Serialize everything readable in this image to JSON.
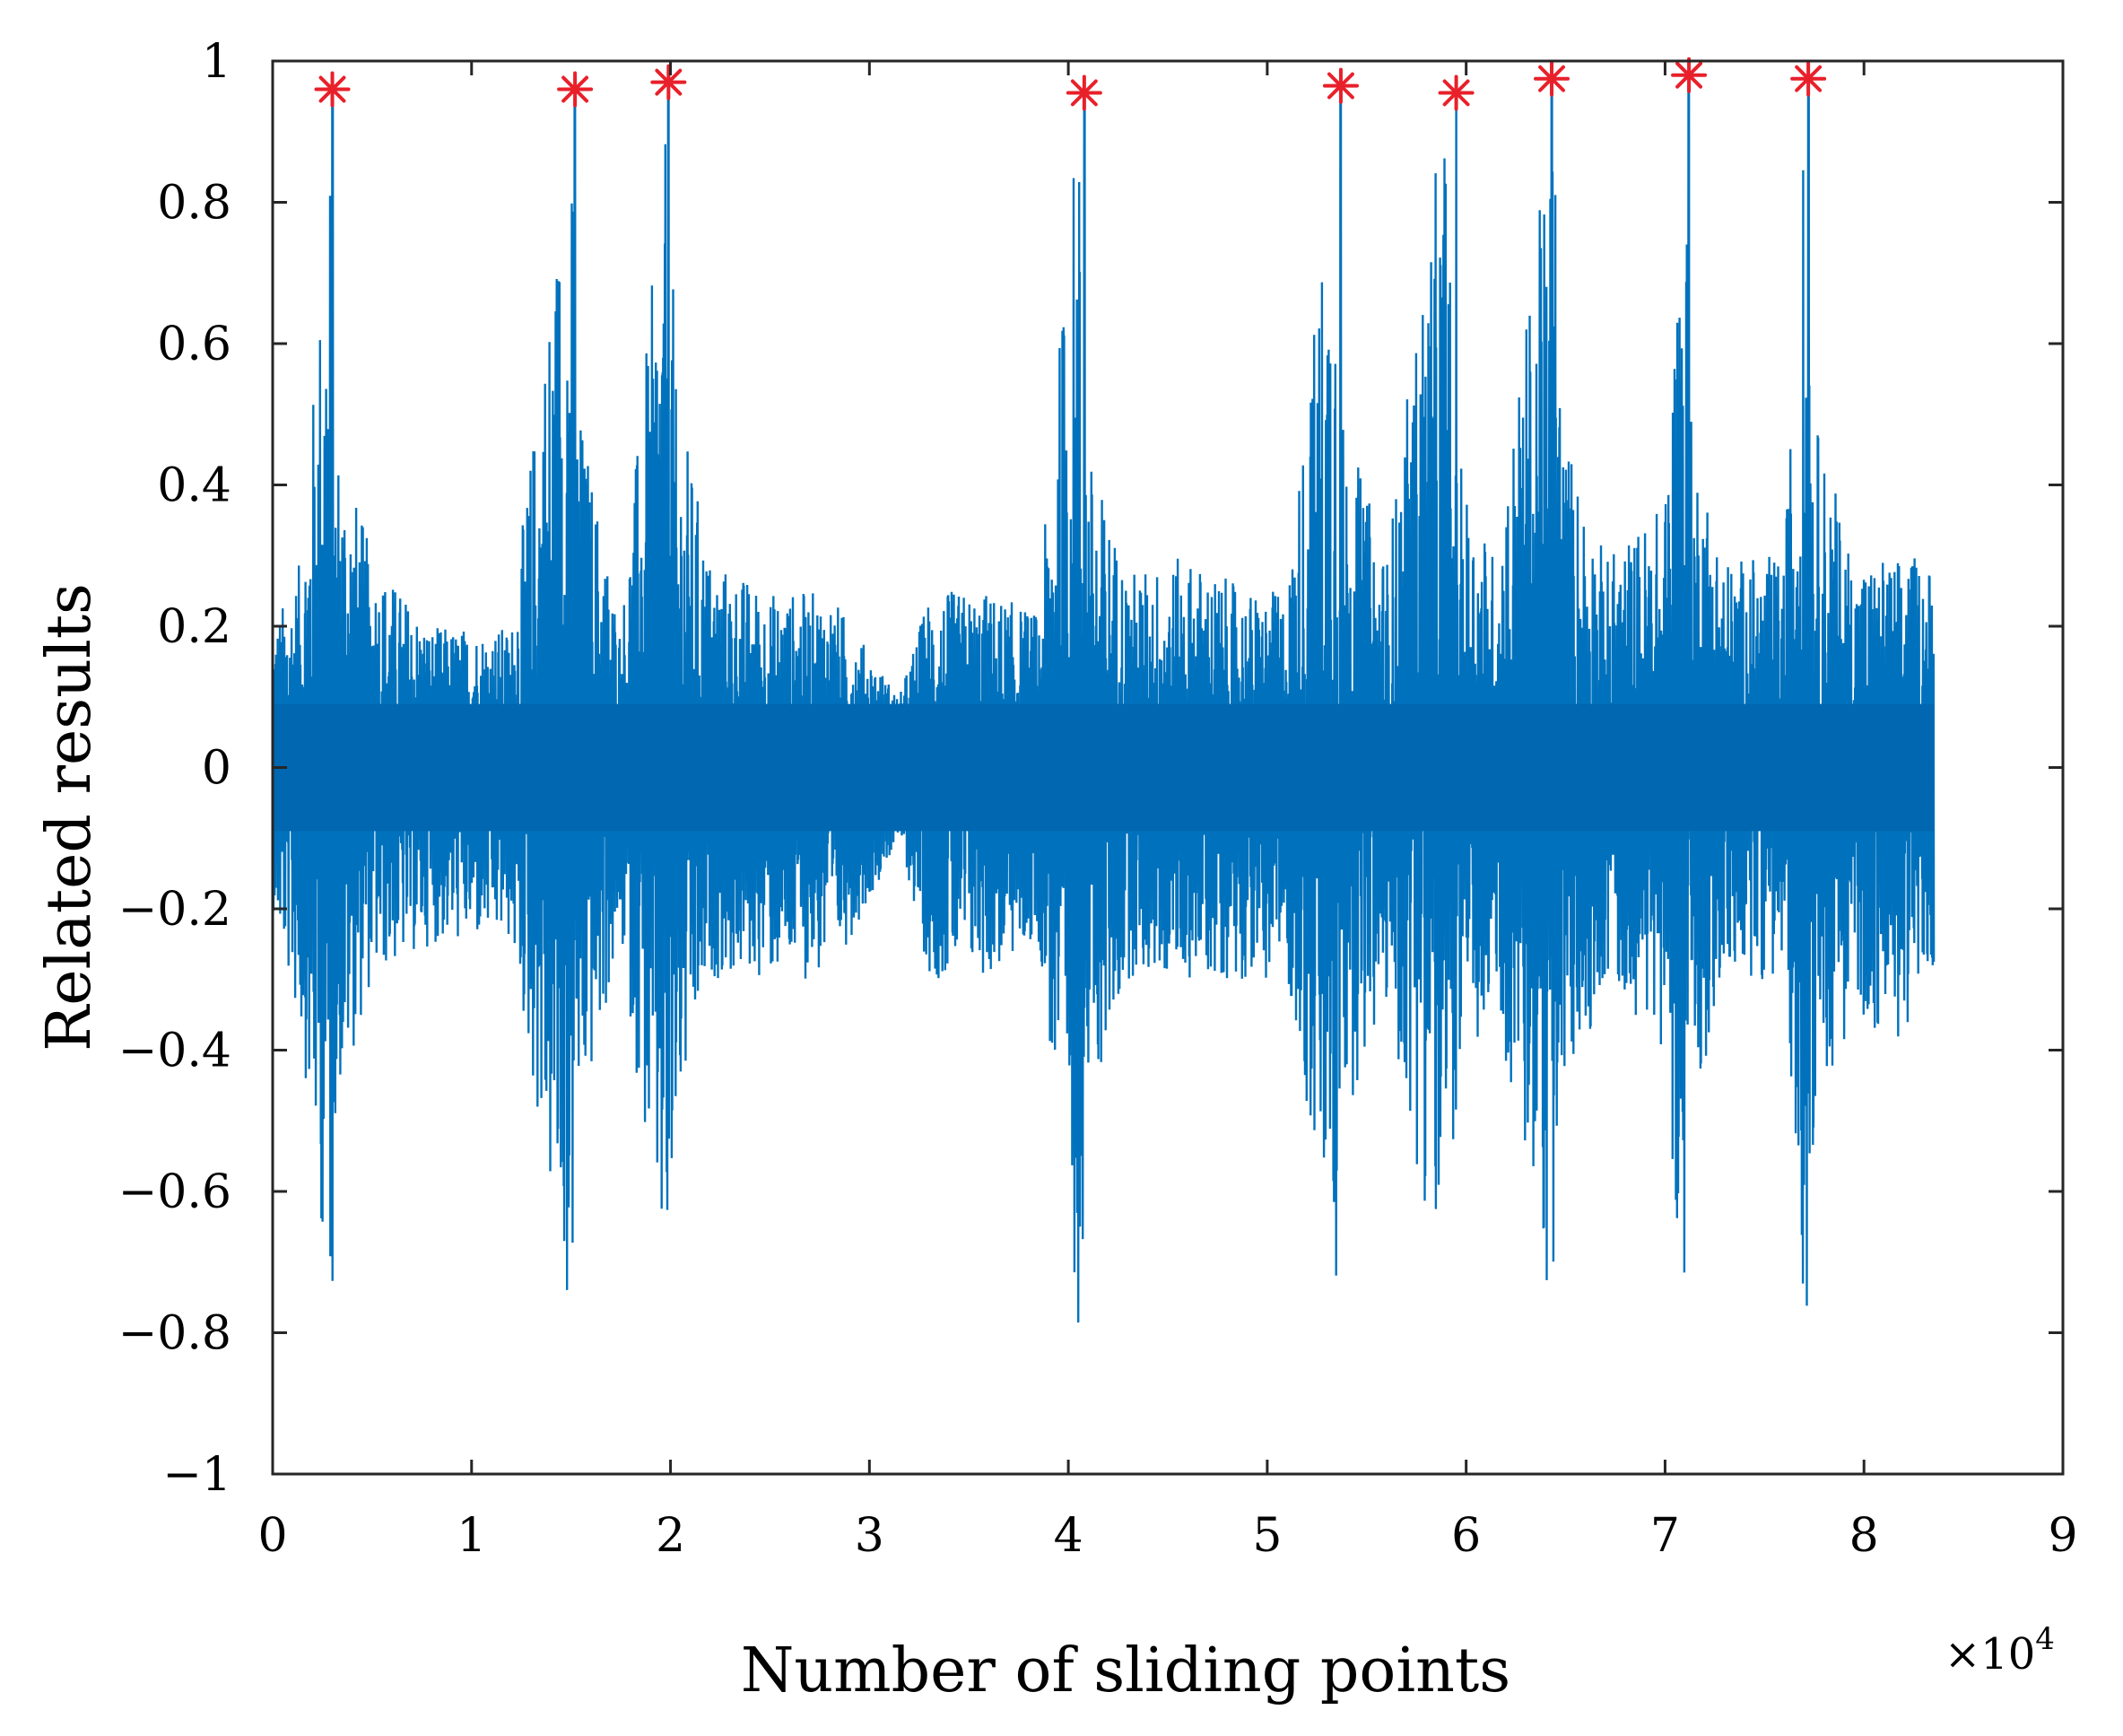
{
  "chart_data": {
    "type": "line",
    "title": "",
    "xlabel": "Number of sliding points",
    "ylabel": "Related results",
    "x_multiplier_label": "×10",
    "x_multiplier_exp": "4",
    "xlim": [
      0,
      90000
    ],
    "ylim": [
      -1,
      1
    ],
    "x_ticks": [
      0,
      10000,
      20000,
      30000,
      40000,
      50000,
      60000,
      70000,
      80000,
      90000
    ],
    "x_tick_labels": [
      "0",
      "1",
      "2",
      "3",
      "4",
      "5",
      "6",
      "7",
      "8",
      "9"
    ],
    "y_ticks": [
      -1,
      -0.8,
      -0.6,
      -0.4,
      -0.2,
      0,
      0.2,
      0.4,
      0.6,
      0.8,
      1
    ],
    "y_tick_labels": [
      "−1",
      "−0.8",
      "−0.6",
      "−0.4",
      "−0.2",
      "0",
      "0.2",
      "0.4",
      "0.6",
      "0.8",
      "1"
    ],
    "grid": false,
    "series": [
      {
        "color": "#0072BD",
        "style": "line",
        "x_range": [
          0,
          83500
        ],
        "x": [
          0,
          1500,
          3000,
          3100,
          5000,
          8000,
          10000,
          12000,
          15000,
          15200,
          17500,
          20000,
          20200,
          22000,
          25000,
          28000,
          31500,
          33000,
          36000,
          38500,
          40500,
          41000,
          43000,
          46000,
          49000,
          51000,
          53500,
          53800,
          56000,
          59000,
          59400,
          61500,
          64500,
          64800,
          67000,
          70000,
          71000,
          71300,
          73000,
          76000,
          77100,
          77500,
          79500,
          81500,
          83500
        ],
        "y_upper": [
          0.2,
          0.3,
          0.96,
          0.5,
          0.3,
          0.2,
          0.2,
          0.2,
          0.96,
          0.55,
          0.2,
          0.97,
          0.55,
          0.3,
          0.25,
          0.25,
          0.1,
          0.25,
          0.25,
          0.22,
          0.96,
          0.45,
          0.28,
          0.3,
          0.25,
          0.25,
          0.96,
          0.5,
          0.3,
          0.96,
          0.45,
          0.3,
          0.97,
          0.5,
          0.3,
          0.38,
          0.98,
          0.5,
          0.3,
          0.3,
          0.97,
          0.5,
          0.3,
          0.3,
          0.3
        ],
        "y_lower": [
          -0.2,
          -0.4,
          -0.81,
          -0.5,
          -0.3,
          -0.25,
          -0.25,
          -0.25,
          -0.83,
          -0.55,
          -0.25,
          -0.84,
          -0.55,
          -0.3,
          -0.3,
          -0.3,
          -0.1,
          -0.3,
          -0.3,
          -0.25,
          -0.8,
          -0.5,
          -0.3,
          -0.3,
          -0.3,
          -0.3,
          -0.8,
          -0.5,
          -0.35,
          -0.77,
          -0.5,
          -0.35,
          -0.81,
          -0.5,
          -0.3,
          -0.4,
          -0.83,
          -0.5,
          -0.3,
          -0.3,
          -0.82,
          -0.5,
          -0.35,
          -0.4,
          -0.3
        ]
      },
      {
        "color": "#E8202A",
        "style": "marker-asterisk",
        "x": [
          3000,
          15200,
          19900,
          40800,
          53700,
          59500,
          64300,
          71200,
          77200
        ],
        "y": [
          0.96,
          0.96,
          0.97,
          0.955,
          0.965,
          0.955,
          0.975,
          0.98,
          0.975
        ]
      }
    ]
  }
}
